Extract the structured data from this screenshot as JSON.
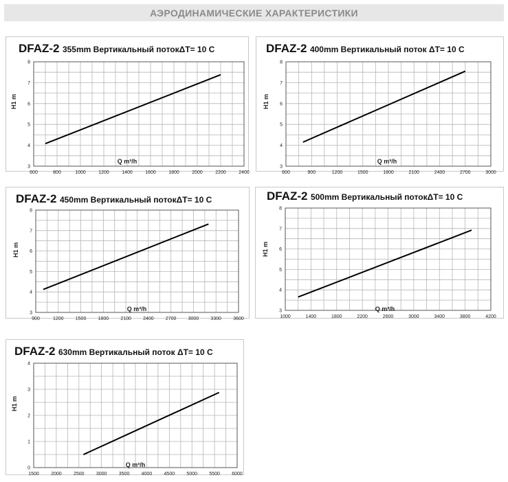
{
  "header": {
    "title": "АЭРОДИНАМИЧЕСКИЕ ХАРАКТЕРИСТИКИ"
  },
  "chart_data": [
    {
      "type": "line",
      "title_model": "DFAZ-2",
      "title_desc": "355mm Вертикальный потокΔT= 10 C",
      "xlabel": "Q m³/h",
      "ylabel": "H1 m",
      "xlim": [
        600,
        2400
      ],
      "ylim": [
        3,
        8
      ],
      "xticks": [
        "600",
        "800",
        "1000",
        "1200",
        "1400",
        "1600",
        "1800",
        "2000",
        "2200",
        "2400"
      ],
      "yticks": [
        "3",
        "4",
        "5",
        "6",
        "7",
        "8"
      ],
      "x_minor_step": 100,
      "series": [
        {
          "x": [
            700,
            2200
          ],
          "y": [
            4.08,
            7.38
          ]
        }
      ],
      "grid": true,
      "line_color": "#000000"
    },
    {
      "type": "line",
      "title_model": "DFAZ-2",
      "title_desc": "400mm Вертикальный поток ΔT= 10 C",
      "xlabel": "Q m³/h",
      "ylabel": "H1 m",
      "xlim": [
        600,
        3000
      ],
      "ylim": [
        3,
        8
      ],
      "xticks": [
        "600",
        "900",
        "1200",
        "1500",
        "1800",
        "2100",
        "2400",
        "2700",
        "3000"
      ],
      "yticks": [
        "3",
        "4",
        "5",
        "6",
        "7",
        "8"
      ],
      "x_minor_step": 150,
      "series": [
        {
          "x": [
            800,
            2700
          ],
          "y": [
            4.15,
            7.55
          ]
        }
      ],
      "grid": true,
      "line_color": "#000000"
    },
    {
      "type": "line",
      "title_model": "DFAZ-2",
      "title_desc": "450mm Вертикальный потокΔT= 10 C",
      "xlabel": "Q m³/h",
      "ylabel": "H1 m",
      "xlim": [
        900,
        3600
      ],
      "ylim": [
        3,
        8
      ],
      "xticks": [
        "900",
        "1200",
        "1500",
        "1800",
        "2100",
        "2400",
        "2700",
        "3000",
        "3300",
        "3600"
      ],
      "yticks": [
        "3",
        "4",
        "5",
        "6",
        "7",
        "8"
      ],
      "x_minor_step": 150,
      "series": [
        {
          "x": [
            1000,
            3200
          ],
          "y": [
            4.12,
            7.32
          ]
        }
      ],
      "grid": true,
      "line_color": "#000000"
    },
    {
      "type": "line",
      "title_model": "DFAZ-2",
      "title_desc": "500mm Вертикальный потокΔT= 10 C",
      "xlabel": "Q m³/h",
      "ylabel": "H1 m",
      "xlim": [
        1000,
        4200
      ],
      "ylim": [
        3,
        8
      ],
      "xticks": [
        "1000",
        "1400",
        "1800",
        "2200",
        "2600",
        "3000",
        "3400",
        "3800",
        "4200"
      ],
      "yticks": [
        "3",
        "4",
        "5",
        "6",
        "7",
        "8"
      ],
      "x_minor_step": 200,
      "series": [
        {
          "x": [
            1200,
            3900
          ],
          "y": [
            3.65,
            6.92
          ]
        }
      ],
      "grid": true,
      "line_color": "#000000"
    },
    {
      "type": "line",
      "title_model": "DFAZ-2",
      "title_desc": "630mm Вертикальный поток ΔT= 10 C",
      "xlabel": "Q m³/h",
      "ylabel": "H1 m",
      "xlim": [
        1500,
        6000
      ],
      "ylim": [
        0,
        4
      ],
      "xticks": [
        "1500",
        "2000",
        "2500",
        "3000",
        "3500",
        "4000",
        "4500",
        "5000",
        "5500",
        "6000"
      ],
      "yticks": [
        "0",
        "1",
        "2",
        "3",
        "4"
      ],
      "x_minor_step": 250,
      "series": [
        {
          "x": [
            2600,
            5600
          ],
          "y": [
            0.5,
            2.88
          ]
        }
      ],
      "grid": true,
      "line_color": "#000000"
    }
  ]
}
